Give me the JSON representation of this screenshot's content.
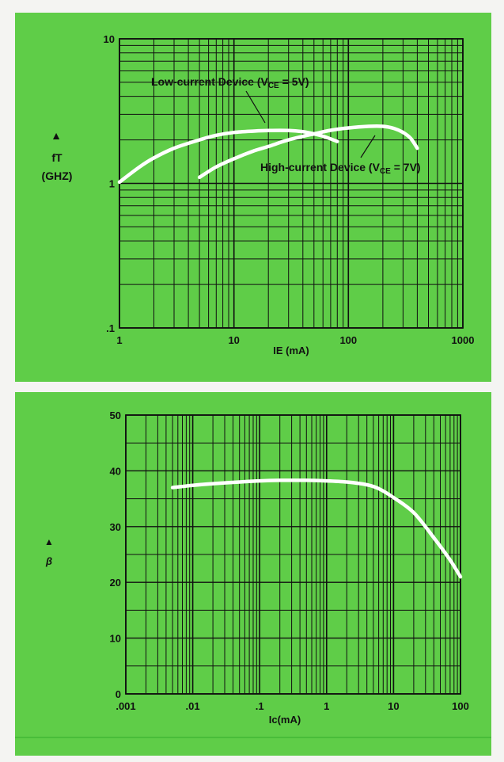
{
  "chart_data": [
    {
      "type": "line",
      "xscale": "log",
      "yscale": "log",
      "xlim": [
        1,
        1000
      ],
      "ylim": [
        0.1,
        10
      ],
      "x_ticks": [
        {
          "v": 1,
          "label": "1"
        },
        {
          "v": 10,
          "label": "10"
        },
        {
          "v": 100,
          "label": "100"
        },
        {
          "v": 1000,
          "label": "1000"
        }
      ],
      "y_ticks": [
        {
          "v": 0.1,
          "label": ".1"
        },
        {
          "v": 1,
          "label": "1"
        },
        {
          "v": 10,
          "label": "10"
        }
      ],
      "grid": true,
      "xlabel": "IE (mA)",
      "ylabel_symbol": "fT",
      "ylabel_unit": "(GHZ)",
      "series": [
        {
          "name": "Low-current Device (VCE = 5V)",
          "x": [
            1,
            1.5,
            2,
            3,
            5,
            7,
            10,
            15,
            20,
            30,
            40,
            50,
            60,
            80
          ],
          "y": [
            1.02,
            1.3,
            1.5,
            1.75,
            2.0,
            2.15,
            2.25,
            2.3,
            2.32,
            2.32,
            2.28,
            2.2,
            2.12,
            1.95
          ]
        },
        {
          "name": "High-current Device (VCE = 7V)",
          "x": [
            5,
            7,
            10,
            15,
            20,
            30,
            50,
            70,
            100,
            150,
            200,
            250,
            300,
            350,
            400
          ],
          "y": [
            1.1,
            1.3,
            1.48,
            1.68,
            1.8,
            2.0,
            2.2,
            2.33,
            2.42,
            2.48,
            2.48,
            2.4,
            2.25,
            2.05,
            1.75
          ]
        }
      ],
      "annotations": {
        "low": {
          "pre": "Low-current Device (V",
          "sub": "CE",
          "post": " = 5V)"
        },
        "high": {
          "pre": "High-current Device (V",
          "sub": "CE",
          "post": " = 7V)"
        }
      }
    },
    {
      "type": "line",
      "xscale": "log",
      "yscale": "linear",
      "xlim": [
        0.001,
        100
      ],
      "ylim": [
        0,
        50
      ],
      "x_ticks": [
        {
          "v": 0.001,
          "label": ".001"
        },
        {
          "v": 0.01,
          "label": ".01"
        },
        {
          "v": 0.1,
          "label": ".1"
        },
        {
          "v": 1,
          "label": "1"
        },
        {
          "v": 10,
          "label": "10"
        },
        {
          "v": 100,
          "label": "100"
        }
      ],
      "y_ticks": [
        {
          "v": 0,
          "label": "0"
        },
        {
          "v": 10,
          "label": "10"
        },
        {
          "v": 20,
          "label": "20"
        },
        {
          "v": 30,
          "label": "30"
        },
        {
          "v": 40,
          "label": "40"
        },
        {
          "v": 50,
          "label": "50"
        }
      ],
      "grid": true,
      "xlabel": "Ic(mA)",
      "ylabel_symbol": "β",
      "series": [
        {
          "x": [
            0.005,
            0.01,
            0.02,
            0.05,
            0.1,
            0.2,
            0.5,
            1,
            2,
            4,
            6,
            10,
            20,
            40,
            70,
            100
          ],
          "y": [
            37,
            37.4,
            37.7,
            38,
            38.2,
            38.3,
            38.3,
            38.2,
            38,
            37.5,
            36.8,
            35.2,
            32.5,
            28,
            24,
            21
          ]
        }
      ]
    }
  ]
}
